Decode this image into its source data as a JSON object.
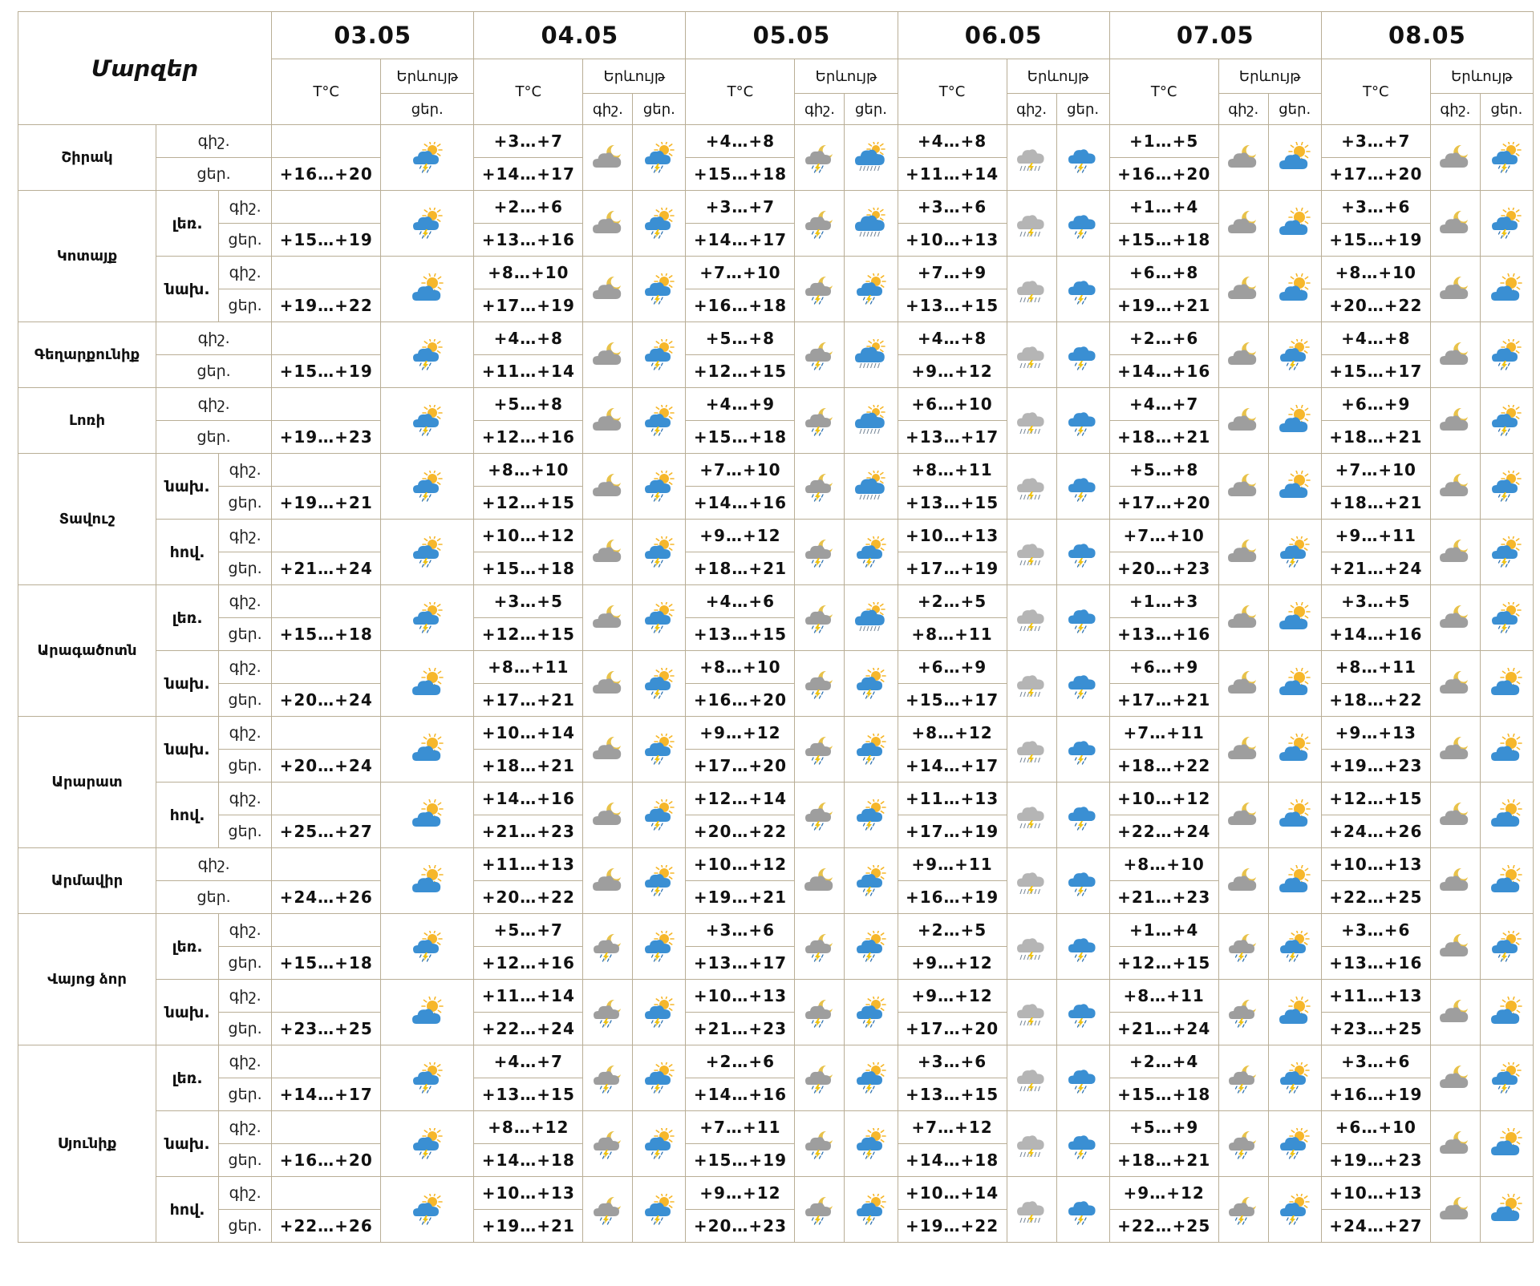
{
  "header": {
    "title": "Մարզեր",
    "temp_label": "T°C",
    "phen_label": "Երևույթ",
    "night_label": "գիշ.",
    "day_label": "ցեր."
  },
  "dates": [
    "03.05",
    "04.05",
    "05.05",
    "06.05",
    "07.05",
    "08.05"
  ],
  "colors": {
    "border": "#b9ae96",
    "cloud_blue": "#3a8fd3",
    "cloud_gray": "#9e9e9e",
    "sun": "#f6b72b",
    "moon": "#e8c24a"
  },
  "regions": [
    {
      "name": "Շիրակ",
      "zones": [
        {
          "zone": "",
          "night": [
            "",
            "+3…+7",
            "+4…+8",
            "+4…+8",
            "+1…+5",
            "+3…+7"
          ],
          "day": [
            "+16…+20",
            "+14…+17",
            "+15…+18",
            "+11…+14",
            "+16…+20",
            "+17…+20"
          ],
          "icons": [
            "sun-cloud-rain-icon",
            "night-cloud-icon",
            "sun-cloud-rain-icon",
            "night-cloud-rain-icon",
            "cloud-snow-rain-icon",
            "night-cloud-gray-rain-icon",
            "cloud-rain-icon",
            "night-cloud-icon",
            "sun-cloud-icon",
            "night-cloud-icon",
            "sun-cloud-rain-icon"
          ]
        }
      ]
    },
    {
      "name": "Կոտայք",
      "zones": [
        {
          "zone": "լեռ.",
          "night": [
            "",
            "+2…+6",
            "+3…+7",
            "+3…+6",
            "+1…+4",
            "+3…+6"
          ],
          "day": [
            "+15…+19",
            "+13…+16",
            "+14…+17",
            "+10…+13",
            "+15…+18",
            "+15…+19"
          ],
          "icons": [
            "sun-cloud-rain-icon",
            "night-cloud-icon",
            "sun-cloud-rain-icon",
            "night-cloud-rain-icon",
            "cloud-snow-rain-icon",
            "night-cloud-gray-rain-icon",
            "cloud-rain-icon",
            "night-cloud-icon",
            "sun-cloud-icon",
            "night-cloud-icon",
            "sun-cloud-rain-icon"
          ]
        },
        {
          "zone": "նախ.",
          "night": [
            "",
            "+8…+10",
            "+7…+10",
            "+7…+9",
            "+6…+8",
            "+8…+10"
          ],
          "day": [
            "+19…+22",
            "+17…+19",
            "+16…+18",
            "+13…+15",
            "+19…+21",
            "+20…+22"
          ],
          "icons": [
            "sun-cloud-icon",
            "night-cloud-icon",
            "sun-cloud-rain-icon",
            "night-cloud-rain-icon",
            "sun-cloud-rain-icon",
            "night-cloud-gray-rain-icon",
            "cloud-rain-icon",
            "night-cloud-icon",
            "sun-cloud-icon",
            "night-cloud-icon",
            "sun-cloud-icon"
          ]
        }
      ]
    },
    {
      "name": "Գեղարքունիք",
      "zones": [
        {
          "zone": "",
          "night": [
            "",
            "+4…+8",
            "+5…+8",
            "+4…+8",
            "+2…+6",
            "+4…+8"
          ],
          "day": [
            "+15…+19",
            "+11…+14",
            "+12…+15",
            "+9…+12",
            "+14…+16",
            "+15…+17"
          ],
          "icons": [
            "sun-cloud-rain-icon",
            "night-cloud-icon",
            "sun-cloud-rain-icon",
            "night-cloud-rain-icon",
            "cloud-snow-rain-icon",
            "night-cloud-gray-rain-icon",
            "cloud-rain-icon",
            "night-cloud-icon",
            "sun-cloud-rain-icon",
            "night-cloud-icon",
            "sun-cloud-rain-icon"
          ]
        }
      ]
    },
    {
      "name": "Լոռի",
      "zones": [
        {
          "zone": "",
          "night": [
            "",
            "+5…+8",
            "+4…+9",
            "+6…+10",
            "+4…+7",
            "+6…+9"
          ],
          "day": [
            "+19…+23",
            "+12…+16",
            "+15…+18",
            "+13…+17",
            "+18…+21",
            "+18…+21"
          ],
          "icons": [
            "sun-cloud-rain-icon",
            "night-cloud-icon",
            "sun-cloud-rain-icon",
            "night-cloud-rain-icon",
            "cloud-snow-rain-icon",
            "night-cloud-gray-rain-icon",
            "cloud-rain-icon",
            "night-cloud-icon",
            "sun-cloud-icon",
            "night-cloud-icon",
            "sun-cloud-rain-icon"
          ]
        }
      ]
    },
    {
      "name": "Տավուշ",
      "zones": [
        {
          "zone": "նախ.",
          "night": [
            "",
            "+8…+10",
            "+7…+10",
            "+8…+11",
            "+5…+8",
            "+7…+10"
          ],
          "day": [
            "+19…+21",
            "+12…+15",
            "+14…+16",
            "+13…+15",
            "+17…+20",
            "+18…+21"
          ],
          "icons": [
            "sun-cloud-rain-icon",
            "night-cloud-icon",
            "sun-cloud-rain-icon",
            "night-cloud-rain-icon",
            "cloud-snow-rain-icon",
            "night-cloud-gray-rain-icon",
            "cloud-rain-icon",
            "night-cloud-icon",
            "sun-cloud-icon",
            "night-cloud-icon",
            "sun-cloud-rain-icon"
          ]
        },
        {
          "zone": "հով.",
          "night": [
            "",
            "+10…+12",
            "+9…+12",
            "+10…+13",
            "+7…+10",
            "+9…+11"
          ],
          "day": [
            "+21…+24",
            "+15…+18",
            "+18…+21",
            "+17…+19",
            "+20…+23",
            "+21…+24"
          ],
          "icons": [
            "sun-cloud-rain-icon",
            "night-cloud-icon",
            "sun-cloud-rain-icon",
            "night-cloud-rain-icon",
            "sun-cloud-rain-icon",
            "night-cloud-gray-rain-icon",
            "cloud-rain-icon",
            "night-cloud-icon",
            "sun-cloud-rain-icon",
            "night-cloud-icon",
            "sun-cloud-rain-icon"
          ]
        }
      ]
    },
    {
      "name": "Արագածոտն",
      "zones": [
        {
          "zone": "լեռ.",
          "night": [
            "",
            "+3…+5",
            "+4…+6",
            "+2…+5",
            "+1…+3",
            "+3…+5"
          ],
          "day": [
            "+15…+18",
            "+12…+15",
            "+13…+15",
            "+8…+11",
            "+13…+16",
            "+14…+16"
          ],
          "icons": [
            "sun-cloud-rain-icon",
            "night-cloud-icon",
            "sun-cloud-rain-icon",
            "night-cloud-rain-icon",
            "cloud-snow-rain-icon",
            "night-cloud-gray-rain-icon",
            "cloud-rain-icon",
            "night-cloud-icon",
            "sun-cloud-icon",
            "night-cloud-icon",
            "sun-cloud-rain-icon"
          ]
        },
        {
          "zone": "նախ.",
          "night": [
            "",
            "+8…+11",
            "+8…+10",
            "+6…+9",
            "+6…+9",
            "+8…+11"
          ],
          "day": [
            "+20…+24",
            "+17…+21",
            "+16…+20",
            "+15…+17",
            "+17…+21",
            "+18…+22"
          ],
          "icons": [
            "sun-cloud-icon",
            "night-cloud-icon",
            "sun-cloud-rain-icon",
            "night-cloud-rain-icon",
            "sun-cloud-rain-icon",
            "night-cloud-gray-rain-icon",
            "cloud-rain-icon",
            "night-cloud-icon",
            "sun-cloud-icon",
            "night-cloud-icon",
            "sun-cloud-icon"
          ]
        }
      ]
    },
    {
      "name": "Արարատ",
      "zones": [
        {
          "zone": "նախ.",
          "night": [
            "",
            "+10…+14",
            "+9…+12",
            "+8…+12",
            "+7…+11",
            "+9…+13"
          ],
          "day": [
            "+20…+24",
            "+18…+21",
            "+17…+20",
            "+14…+17",
            "+18…+22",
            "+19…+23"
          ],
          "icons": [
            "sun-cloud-icon",
            "night-cloud-icon",
            "sun-cloud-rain-icon",
            "night-cloud-rain-icon",
            "sun-cloud-rain-icon",
            "night-cloud-gray-rain-icon",
            "cloud-rain-icon",
            "night-cloud-icon",
            "sun-cloud-icon",
            "night-cloud-icon",
            "sun-cloud-icon"
          ]
        },
        {
          "zone": "հով.",
          "night": [
            "",
            "+14…+16",
            "+12…+14",
            "+11…+13",
            "+10…+12",
            "+12…+15"
          ],
          "day": [
            "+25…+27",
            "+21…+23",
            "+20…+22",
            "+17…+19",
            "+22…+24",
            "+24…+26"
          ],
          "icons": [
            "sun-cloud-icon",
            "night-cloud-icon",
            "sun-cloud-rain-icon",
            "night-cloud-rain-icon",
            "sun-cloud-rain-icon",
            "night-cloud-gray-rain-icon",
            "cloud-rain-icon",
            "night-cloud-icon",
            "sun-cloud-icon",
            "night-cloud-icon",
            "sun-cloud-icon"
          ]
        }
      ]
    },
    {
      "name": "Արմավիր",
      "zones": [
        {
          "zone": "",
          "night": [
            "",
            "+11…+13",
            "+10…+12",
            "+9…+11",
            "+8…+10",
            "+10…+13"
          ],
          "day": [
            "+24…+26",
            "+20…+22",
            "+19…+21",
            "+16…+19",
            "+21…+23",
            "+22…+25"
          ],
          "icons": [
            "sun-cloud-icon",
            "night-cloud-icon",
            "sun-cloud-rain-icon",
            "night-cloud-icon",
            "sun-cloud-rain-icon",
            "night-cloud-gray-rain-icon",
            "cloud-rain-icon",
            "night-cloud-icon",
            "sun-cloud-icon",
            "night-cloud-icon",
            "sun-cloud-icon"
          ]
        }
      ]
    },
    {
      "name": "Վայոց ձոր",
      "zones": [
        {
          "zone": "լեռ.",
          "night": [
            "",
            "+5…+7",
            "+3…+6",
            "+2…+5",
            "+1…+4",
            "+3…+6"
          ],
          "day": [
            "+15…+18",
            "+12…+16",
            "+13…+17",
            "+9…+12",
            "+12…+15",
            "+13…+16"
          ],
          "icons": [
            "sun-cloud-rain-icon",
            "night-cloud-rain-icon",
            "sun-cloud-rain-icon",
            "night-cloud-rain-icon",
            "sun-cloud-rain-icon",
            "night-cloud-gray-rain-icon",
            "cloud-rain-icon",
            "night-cloud-rain-icon",
            "sun-cloud-rain-icon",
            "night-cloud-icon",
            "sun-cloud-rain-icon"
          ]
        },
        {
          "zone": "նախ.",
          "night": [
            "",
            "+11…+14",
            "+10…+13",
            "+9…+12",
            "+8…+11",
            "+11…+13"
          ],
          "day": [
            "+23…+25",
            "+22…+24",
            "+21…+23",
            "+17…+20",
            "+21…+24",
            "+23…+25"
          ],
          "icons": [
            "sun-cloud-icon",
            "night-cloud-rain-icon",
            "sun-cloud-rain-icon",
            "night-cloud-rain-icon",
            "sun-cloud-rain-icon",
            "night-cloud-gray-rain-icon",
            "cloud-rain-icon",
            "night-cloud-rain-icon",
            "sun-cloud-icon",
            "night-cloud-icon",
            "sun-cloud-icon"
          ]
        }
      ]
    },
    {
      "name": "Սյունիք",
      "zones": [
        {
          "zone": "լեռ.",
          "night": [
            "",
            "+4…+7",
            "+2…+6",
            "+3…+6",
            "+2…+4",
            "+3…+6"
          ],
          "day": [
            "+14…+17",
            "+13…+15",
            "+14…+16",
            "+13…+15",
            "+15…+18",
            "+16…+19"
          ],
          "icons": [
            "sun-cloud-rain-icon",
            "night-cloud-rain-icon",
            "sun-cloud-rain-icon",
            "night-cloud-rain-icon",
            "sun-cloud-rain-icon",
            "night-cloud-gray-rain-icon",
            "cloud-rain-icon",
            "night-cloud-rain-icon",
            "sun-cloud-rain-icon",
            "night-cloud-icon",
            "sun-cloud-rain-icon"
          ]
        },
        {
          "zone": "նախ.",
          "night": [
            "",
            "+8…+12",
            "+7…+11",
            "+7…+12",
            "+5…+9",
            "+6…+10"
          ],
          "day": [
            "+16…+20",
            "+14…+18",
            "+15…+19",
            "+14…+18",
            "+18…+21",
            "+19…+23"
          ],
          "icons": [
            "sun-cloud-rain-icon",
            "night-cloud-rain-icon",
            "sun-cloud-rain-icon",
            "night-cloud-rain-icon",
            "sun-cloud-rain-icon",
            "night-cloud-gray-rain-icon",
            "cloud-rain-icon",
            "night-cloud-rain-icon",
            "sun-cloud-rain-icon",
            "night-cloud-icon",
            "sun-cloud-icon"
          ]
        },
        {
          "zone": "հով.",
          "night": [
            "",
            "+10…+13",
            "+9…+12",
            "+10…+14",
            "+9…+12",
            "+10…+13"
          ],
          "day": [
            "+22…+26",
            "+19…+21",
            "+20…+23",
            "+19…+22",
            "+22…+25",
            "+24…+27"
          ],
          "icons": [
            "sun-cloud-rain-icon",
            "night-cloud-rain-icon",
            "sun-cloud-rain-icon",
            "night-cloud-rain-icon",
            "sun-cloud-rain-icon",
            "night-cloud-gray-rain-icon",
            "cloud-rain-icon",
            "night-cloud-rain-icon",
            "sun-cloud-rain-icon",
            "night-cloud-icon",
            "sun-cloud-icon"
          ]
        }
      ]
    }
  ]
}
